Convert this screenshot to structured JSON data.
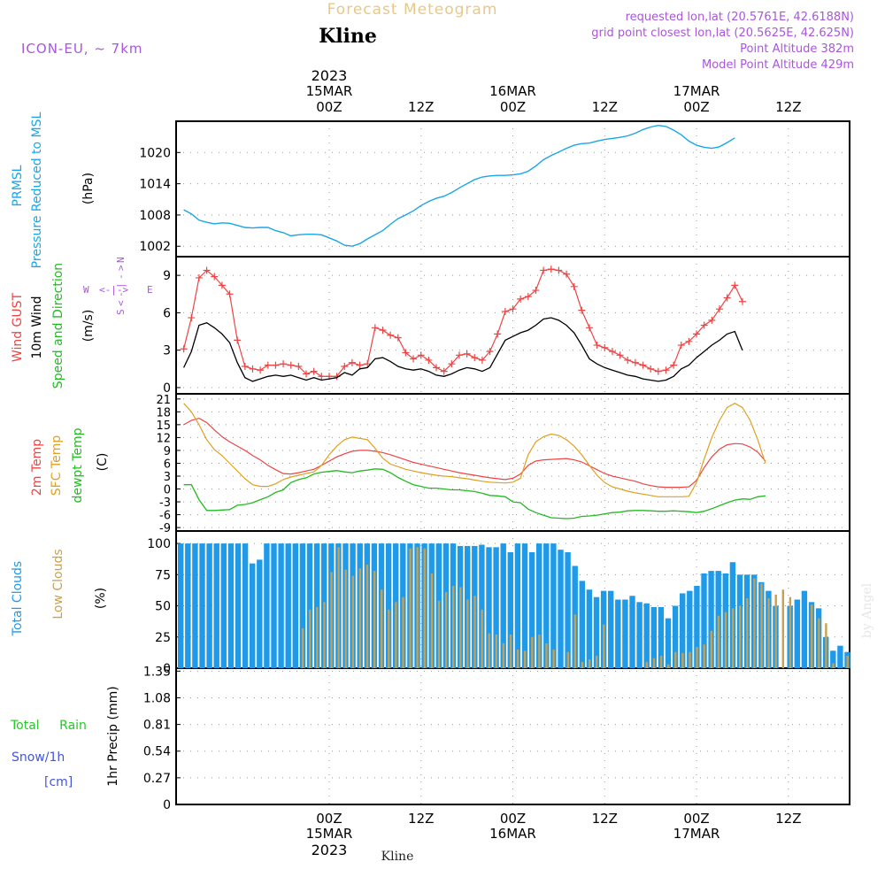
{
  "header": {
    "forecast_title": "Forecast Meteogram",
    "station": "Kline",
    "model": "ICON-EU, ~ 7km",
    "requested": "requested lon,lat (20.5761E, 42.6188N)",
    "grid_point": "grid point closest lon,lat (20.5625E, 42.625N)",
    "point_altitude": "Point Altitude 382m",
    "model_altitude": "Model Point Altitude 429m",
    "watermark": "by Angel",
    "footer_station": "Kline"
  },
  "time_axis": {
    "year": "2023",
    "ticks": [
      {
        "h": 19,
        "label": "00Z",
        "date": "15MAR"
      },
      {
        "h": 31,
        "label": "12Z",
        "date": ""
      },
      {
        "h": 43,
        "label": "00Z",
        "date": "16MAR"
      },
      {
        "h": 55,
        "label": "12Z",
        "date": ""
      },
      {
        "h": 67,
        "label": "00Z",
        "date": "17MAR"
      },
      {
        "h": 79,
        "label": "12Z",
        "date": ""
      }
    ],
    "start_label": "2023-03-14 05Z",
    "step_hours": 1
  },
  "colors": {
    "pressure": "#1aa6e6",
    "gust": "#ee4444",
    "wind": "#000000",
    "temp2m": "#ee4444",
    "sfc": "#e0a020",
    "dewpt": "#22bb22",
    "total_clouds": "#1f9ae8",
    "low_clouds": "#c8a050",
    "rain": "#22cc22",
    "snow_label": "#4455dd",
    "purple": "#aa55dd",
    "grid": "#999999"
  },
  "chart_data": [
    {
      "type": "line",
      "title": "PRMSL Pressure Reduced to MSL",
      "ylabel": "(hPa)",
      "ylim": [
        1000,
        1026
      ],
      "yticks": [
        1002,
        1008,
        1014,
        1020
      ],
      "series": [
        {
          "name": "PRMSL",
          "values": [
            1009.0,
            1008.2,
            1007.0,
            1006.6,
            1006.3,
            1006.5,
            1006.4,
            1006.0,
            1005.6,
            1005.5,
            1005.6,
            1005.6,
            1005.0,
            1004.6,
            1004.0,
            1004.2,
            1004.3,
            1004.3,
            1004.2,
            1003.6,
            1003.0,
            1002.2,
            1002.0,
            1002.5,
            1003.4,
            1004.2,
            1005.0,
            1006.2,
            1007.3,
            1008.0,
            1008.8,
            1009.8,
            1010.6,
            1011.2,
            1011.6,
            1012.3,
            1013.2,
            1014.0,
            1014.8,
            1015.3,
            1015.5,
            1015.6,
            1015.6,
            1015.7,
            1015.9,
            1016.4,
            1017.4,
            1018.6,
            1019.4,
            1020.1,
            1020.8,
            1021.4,
            1021.7,
            1021.8,
            1022.2,
            1022.5,
            1022.7,
            1022.9,
            1023.2,
            1023.7,
            1024.4,
            1024.9,
            1025.2,
            1025.0,
            1024.3,
            1023.4,
            1022.2,
            1021.4,
            1021.0,
            1020.8,
            1021.1,
            1021.9,
            1022.8
          ]
        }
      ]
    },
    {
      "type": "line",
      "title": "Wind GUST 10m Wind Speed and Direction",
      "ylabel": "(m/s)",
      "ylim": [
        -0.5,
        10.5
      ],
      "yticks": [
        0,
        3,
        6,
        9
      ],
      "compass": {
        "n": "N",
        "s": "S",
        "w": "W",
        "e": "E"
      },
      "series": [
        {
          "name": "Wind GUST",
          "values": [
            3.1,
            5.6,
            8.8,
            9.4,
            8.9,
            8.2,
            7.5,
            3.8,
            1.7,
            1.5,
            1.4,
            1.8,
            1.8,
            1.9,
            1.8,
            1.7,
            1.1,
            1.3,
            0.9,
            0.9,
            0.9,
            1.7,
            2.0,
            1.8,
            1.9,
            4.8,
            4.6,
            4.2,
            4.0,
            2.8,
            2.3,
            2.6,
            2.2,
            1.6,
            1.3,
            1.9,
            2.6,
            2.7,
            2.4,
            2.2,
            2.9,
            4.3,
            6.1,
            6.3,
            7.1,
            7.3,
            7.8,
            9.4,
            9.5,
            9.4,
            9.1,
            8.1,
            6.2,
            4.8,
            3.4,
            3.2,
            2.9,
            2.6,
            2.2,
            2.0,
            1.8,
            1.5,
            1.3,
            1.4,
            1.8,
            3.4,
            3.7,
            4.3,
            5.0,
            5.4,
            6.3,
            7.2,
            8.2,
            6.9
          ]
        },
        {
          "name": "10m Wind",
          "values": [
            1.6,
            2.9,
            5.0,
            5.2,
            4.8,
            4.3,
            3.6,
            2.0,
            0.8,
            0.5,
            0.7,
            0.9,
            1.0,
            0.9,
            1.0,
            0.8,
            0.6,
            0.8,
            0.6,
            0.7,
            0.8,
            1.2,
            1.0,
            1.5,
            1.6,
            2.3,
            2.4,
            2.1,
            1.7,
            1.5,
            1.4,
            1.5,
            1.3,
            1.0,
            0.9,
            1.1,
            1.4,
            1.6,
            1.5,
            1.3,
            1.6,
            2.7,
            3.8,
            4.1,
            4.4,
            4.6,
            5.0,
            5.5,
            5.6,
            5.4,
            5.0,
            4.4,
            3.4,
            2.3,
            1.9,
            1.6,
            1.4,
            1.2,
            1.0,
            0.9,
            0.7,
            0.6,
            0.5,
            0.6,
            0.9,
            1.5,
            1.8,
            2.4,
            2.9,
            3.4,
            3.8,
            4.3,
            4.5,
            3.0
          ]
        }
      ]
    },
    {
      "type": "line",
      "title": "2m Temp SFC Temp dewpt Temp",
      "ylabel": "(C)",
      "ylim": [
        -9,
        21
      ],
      "yticks": [
        21,
        18,
        15,
        12,
        9,
        6,
        3,
        0,
        -3,
        -6,
        -9
      ],
      "series": [
        {
          "name": "2m Temp",
          "values": [
            15.0,
            16.0,
            16.5,
            15.5,
            13.8,
            12.2,
            11.0,
            10.0,
            9.0,
            7.8,
            6.8,
            5.5,
            4.5,
            3.6,
            3.5,
            3.8,
            4.2,
            4.6,
            5.5,
            6.5,
            7.5,
            8.2,
            8.8,
            9.0,
            9.0,
            8.8,
            8.5,
            8.0,
            7.4,
            6.8,
            6.2,
            5.8,
            5.4,
            5.0,
            4.6,
            4.2,
            3.8,
            3.5,
            3.2,
            2.9,
            2.6,
            2.4,
            2.2,
            2.5,
            3.5,
            5.5,
            6.5,
            6.8,
            6.9,
            7.0,
            7.1,
            6.8,
            6.3,
            5.4,
            4.5,
            3.6,
            3.0,
            2.6,
            2.2,
            1.8,
            1.2,
            0.8,
            0.5,
            0.4,
            0.4,
            0.4,
            0.5,
            2.0,
            5.0,
            7.5,
            9.3,
            10.3,
            10.6,
            10.5,
            9.8,
            8.6,
            6.5
          ]
        },
        {
          "name": "SFC Temp",
          "values": [
            20.0,
            18.0,
            15.0,
            11.5,
            9.2,
            7.8,
            6.0,
            4.2,
            2.4,
            1.0,
            0.6,
            0.6,
            1.2,
            2.2,
            2.8,
            3.2,
            3.6,
            4.0,
            5.5,
            8.0,
            10.0,
            11.5,
            12.1,
            11.8,
            11.5,
            9.5,
            7.2,
            5.8,
            5.2,
            4.6,
            4.2,
            3.8,
            3.5,
            3.2,
            3.0,
            2.9,
            2.6,
            2.4,
            2.1,
            1.8,
            1.6,
            1.5,
            1.4,
            1.6,
            2.5,
            8.0,
            11.0,
            12.2,
            12.8,
            12.5,
            11.5,
            10.0,
            8.0,
            5.5,
            3.2,
            1.5,
            0.5,
            0.0,
            -0.5,
            -0.9,
            -1.2,
            -1.5,
            -1.8,
            -1.8,
            -1.8,
            -1.8,
            -1.7,
            1.5,
            7.0,
            12.0,
            16.0,
            19.0,
            20.0,
            19.0,
            16.0,
            11.5,
            6.0
          ]
        },
        {
          "name": "dewpt Temp",
          "values": [
            1.0,
            1.0,
            -2.5,
            -5.0,
            -5.0,
            -4.9,
            -4.8,
            -3.8,
            -3.6,
            -3.2,
            -2.5,
            -1.8,
            -0.8,
            -0.2,
            1.5,
            2.2,
            2.6,
            3.5,
            3.9,
            4.1,
            4.3,
            4.0,
            3.8,
            4.2,
            4.4,
            4.7,
            4.6,
            3.8,
            2.7,
            1.8,
            1.0,
            0.6,
            0.2,
            0.2,
            0.0,
            -0.2,
            -0.2,
            -0.4,
            -0.6,
            -1.0,
            -1.5,
            -1.6,
            -1.8,
            -3.0,
            -3.2,
            -4.7,
            -5.5,
            -6.1,
            -6.7,
            -6.8,
            -6.9,
            -6.8,
            -6.4,
            -6.3,
            -6.1,
            -5.8,
            -5.5,
            -5.4,
            -5.1,
            -5.0,
            -5.0,
            -5.1,
            -5.2,
            -5.2,
            -5.1,
            -5.2,
            -5.3,
            -5.5,
            -5.2,
            -4.6,
            -3.9,
            -3.2,
            -2.6,
            -2.3,
            -2.4,
            -1.8,
            -1.6
          ]
        }
      ]
    },
    {
      "type": "bar",
      "title": "Total Clouds Low Clouds",
      "ylabel": "(%)",
      "ylim": [
        0,
        100
      ],
      "yticks": [
        0,
        25,
        50,
        75,
        100
      ],
      "series": [
        {
          "name": "Total Clouds",
          "values": [
            100,
            100,
            100,
            100,
            100,
            100,
            100,
            100,
            100,
            100,
            84,
            87,
            100,
            100,
            100,
            100,
            100,
            100,
            100,
            100,
            100,
            100,
            100,
            100,
            100,
            100,
            100,
            100,
            100,
            100,
            100,
            100,
            100,
            100,
            100,
            100,
            100,
            100,
            100,
            98,
            98,
            98,
            99,
            97,
            97,
            100,
            93,
            100,
            100,
            93,
            100,
            100,
            100,
            95,
            93,
            82,
            70,
            63,
            57,
            62,
            62,
            55,
            55,
            58,
            53,
            52,
            49,
            49,
            40,
            50,
            60,
            62,
            66,
            76,
            78,
            78,
            76,
            85,
            75,
            75,
            75,
            69,
            62,
            50,
            0,
            50,
            55,
            62,
            53,
            48,
            25,
            14,
            18,
            13
          ]
        },
        {
          "name": "Low Clouds",
          "values": [
            0,
            0,
            0,
            0,
            0,
            0,
            0,
            0,
            0,
            0,
            0,
            0,
            0,
            0,
            0,
            0,
            0,
            32,
            47,
            49,
            53,
            77,
            97,
            79,
            74,
            80,
            83,
            78,
            63,
            47,
            53,
            57,
            96,
            97,
            96,
            76,
            54,
            61,
            66,
            65,
            55,
            58,
            47,
            28,
            27,
            20,
            27,
            15,
            14,
            25,
            27,
            20,
            15,
            0,
            13,
            43,
            5,
            7,
            10,
            35,
            0,
            0,
            0,
            0,
            0,
            5,
            8,
            10,
            3,
            13,
            12,
            13,
            17,
            19,
            30,
            42,
            45,
            48,
            50,
            56,
            72,
            68,
            56,
            59,
            63,
            57,
            0,
            0,
            51,
            40,
            36,
            4,
            0,
            10
          ]
        }
      ]
    },
    {
      "type": "bar",
      "title": "Total Rain Snow/1h [cm]",
      "ylabel": "1hr Precip (mm)",
      "ylim": [
        0,
        1.35
      ],
      "yticks": [
        0,
        0.27,
        0.54,
        0.81,
        1.08,
        1.35
      ],
      "series": [
        {
          "name": "Total Rain",
          "values": [
            0,
            0,
            0,
            0,
            0,
            0,
            0,
            0,
            0,
            0,
            0,
            0,
            0,
            0,
            0,
            0,
            0,
            0,
            0,
            0,
            0,
            0,
            0,
            0,
            0,
            0,
            0,
            0,
            0,
            0,
            0,
            0,
            0,
            0,
            0,
            0,
            0,
            0,
            0,
            0,
            0,
            0,
            0,
            0,
            0,
            0,
            0,
            0,
            0,
            0,
            0,
            0,
            0,
            0,
            0,
            0,
            0,
            0,
            0,
            0,
            0,
            0,
            0,
            0,
            0,
            0,
            0,
            0,
            0,
            0,
            0,
            0,
            0,
            0,
            0,
            0,
            0,
            0,
            0,
            0,
            0,
            0,
            0,
            0,
            0,
            0,
            0,
            0,
            0,
            0,
            0,
            0,
            0,
            0
          ]
        }
      ]
    }
  ],
  "labels": {
    "prmsl": "PRMSL",
    "pressure_msl": "Pressure Reduced to MSL",
    "hpa": "(hPa)",
    "wind_gust": "Wind GUST",
    "wind10": "10m Wind",
    "speed_dir": "Speed and Direction",
    "ms": "(m/s)",
    "temp2m": "2m Temp",
    "sfc_temp": "SFC Temp",
    "dewpt": "dewpt Temp",
    "c": "(C)",
    "total_clouds": "Total Clouds",
    "low_clouds": "Low Clouds",
    "pct": "(%)",
    "total_rain": "Total Rain",
    "snow": "Snow/1h",
    "cm": "[cm]",
    "precip": "1hr Precip (mm)"
  }
}
